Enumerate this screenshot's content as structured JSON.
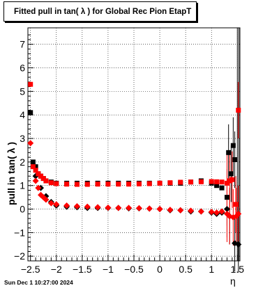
{
  "title": "Fitted pull in tan( λ ) for Global Rec Pion EtapT",
  "footer": {
    "timestamp": "Sun Dec  1 10:27:00 2024"
  },
  "chart_data": {
    "type": "scatter",
    "title": "Fitted pull in tan( λ ) for Global Rec Pion EtapT",
    "xlabel": "η",
    "ylabel": "pull in tan( λ )",
    "xlim": [
      -2.55,
      1.55
    ],
    "ylim": [
      -2.2,
      7.7
    ],
    "grid": true,
    "x_ticks": [
      -2.5,
      -2,
      -1.5,
      -1,
      -0.5,
      0,
      0.5,
      1,
      1.5
    ],
    "x_tick_labels": [
      "−2.5",
      "−2",
      "−1.5",
      "−1",
      "−0.5",
      "0",
      "0.5",
      "1",
      "1.5"
    ],
    "y_ticks": [
      -2,
      -1,
      0,
      1,
      2,
      3,
      4,
      5,
      6,
      7
    ],
    "y_tick_labels": [
      "−2",
      "−1",
      "0",
      "1",
      "2",
      "3",
      "4",
      "5",
      "6",
      "7"
    ],
    "colors": {
      "black": "#000000",
      "red": "#ff0000"
    },
    "series": [
      {
        "color": "#000000",
        "marker": "square",
        "points": [
          [
            -2.5,
            4.1
          ],
          [
            -2.45,
            2.0
          ],
          [
            -2.4,
            1.8
          ],
          [
            -2.35,
            1.5
          ],
          [
            -2.3,
            1.4
          ],
          [
            -2.25,
            1.3
          ],
          [
            -2.2,
            1.2
          ],
          [
            -2.1,
            1.15
          ],
          [
            -2.0,
            1.1
          ],
          [
            -1.8,
            1.1
          ],
          [
            -1.6,
            1.1
          ],
          [
            -1.4,
            1.1
          ],
          [
            -1.2,
            1.1
          ],
          [
            -1.0,
            1.1
          ],
          [
            -0.8,
            1.1
          ],
          [
            -0.6,
            1.1
          ],
          [
            -0.4,
            1.1
          ],
          [
            -0.2,
            1.1
          ],
          [
            0.0,
            1.1
          ],
          [
            0.2,
            1.1
          ],
          [
            0.4,
            1.1
          ],
          [
            0.6,
            1.15
          ],
          [
            0.8,
            1.2
          ],
          [
            1.0,
            1.1
          ],
          [
            1.1,
            1.0
          ],
          [
            1.2,
            0.9
          ],
          [
            1.3,
            0.5
          ],
          [
            1.33,
            2.4
          ],
          [
            1.38,
            1.5
          ],
          [
            1.42,
            2.7
          ],
          [
            1.45,
            2.1
          ]
        ]
      },
      {
        "color": "#000000",
        "marker": "diamond",
        "points": [
          [
            -2.4,
            1.4
          ],
          [
            -2.3,
            0.9
          ],
          [
            -2.2,
            0.55
          ],
          [
            -2.1,
            0.3
          ],
          [
            -2.0,
            0.15
          ],
          [
            -1.8,
            0.1
          ],
          [
            -1.6,
            0.08
          ],
          [
            -1.4,
            0.05
          ],
          [
            -1.2,
            0.05
          ],
          [
            -1.0,
            0.05
          ],
          [
            -0.8,
            0.05
          ],
          [
            -0.6,
            0.03
          ],
          [
            -0.4,
            0.03
          ],
          [
            -0.2,
            0.02
          ],
          [
            0.0,
            0.0
          ],
          [
            0.2,
            -0.05
          ],
          [
            0.4,
            -0.05
          ],
          [
            0.6,
            -0.1
          ],
          [
            0.8,
            -0.1
          ],
          [
            1.0,
            -0.15
          ],
          [
            1.1,
            -0.2
          ],
          [
            1.2,
            -0.15
          ],
          [
            1.3,
            0.0
          ],
          [
            1.35,
            -0.3
          ],
          [
            1.45,
            -1.45
          ],
          [
            1.52,
            -1.5
          ]
        ]
      },
      {
        "color": "#ff0000",
        "marker": "square",
        "points": [
          [
            -2.5,
            5.3
          ],
          [
            -2.45,
            1.8
          ],
          [
            -2.4,
            1.65
          ],
          [
            -2.35,
            1.5
          ],
          [
            -2.3,
            1.4
          ],
          [
            -2.25,
            1.3
          ],
          [
            -2.2,
            1.2
          ],
          [
            -2.1,
            1.12
          ],
          [
            -2.0,
            1.08
          ],
          [
            -1.8,
            1.06
          ],
          [
            -1.6,
            1.05
          ],
          [
            -1.4,
            1.05
          ],
          [
            -1.2,
            1.06
          ],
          [
            -1.0,
            1.06
          ],
          [
            -0.8,
            1.06
          ],
          [
            -0.6,
            1.06
          ],
          [
            -0.4,
            1.07
          ],
          [
            -0.2,
            1.08
          ],
          [
            0.0,
            1.1
          ],
          [
            0.2,
            1.12
          ],
          [
            0.4,
            1.14
          ],
          [
            0.6,
            1.15
          ],
          [
            0.8,
            1.16
          ],
          [
            1.0,
            1.17
          ],
          [
            1.1,
            1.16
          ],
          [
            1.2,
            1.15
          ],
          [
            1.3,
            1.1
          ],
          [
            1.35,
            1.2
          ],
          [
            1.4,
            1.25
          ],
          [
            1.47,
            0.2
          ],
          [
            1.52,
            4.2
          ]
        ]
      },
      {
        "color": "#ff0000",
        "marker": "diamond",
        "points": [
          [
            -2.5,
            2.8
          ],
          [
            -2.4,
            1.2
          ],
          [
            -2.35,
            0.9
          ],
          [
            -2.3,
            0.6
          ],
          [
            -2.25,
            0.5
          ],
          [
            -2.2,
            0.4
          ],
          [
            -2.1,
            0.25
          ],
          [
            -2.0,
            0.2
          ],
          [
            -1.8,
            0.15
          ],
          [
            -1.6,
            0.12
          ],
          [
            -1.4,
            0.1
          ],
          [
            -1.2,
            0.08
          ],
          [
            -1.0,
            0.06
          ],
          [
            -0.8,
            0.05
          ],
          [
            -0.6,
            0.05
          ],
          [
            -0.4,
            0.04
          ],
          [
            -0.2,
            0.02
          ],
          [
            0.0,
            0.0
          ],
          [
            0.2,
            -0.03
          ],
          [
            0.4,
            -0.05
          ],
          [
            0.6,
            -0.07
          ],
          [
            0.8,
            -0.1
          ],
          [
            1.0,
            -0.12
          ],
          [
            1.1,
            -0.15
          ],
          [
            1.2,
            -0.1
          ],
          [
            1.3,
            -0.2
          ],
          [
            1.35,
            -0.3
          ],
          [
            1.42,
            -0.35
          ],
          [
            1.48,
            -0.3
          ],
          [
            1.52,
            -0.2
          ]
        ]
      }
    ]
  }
}
